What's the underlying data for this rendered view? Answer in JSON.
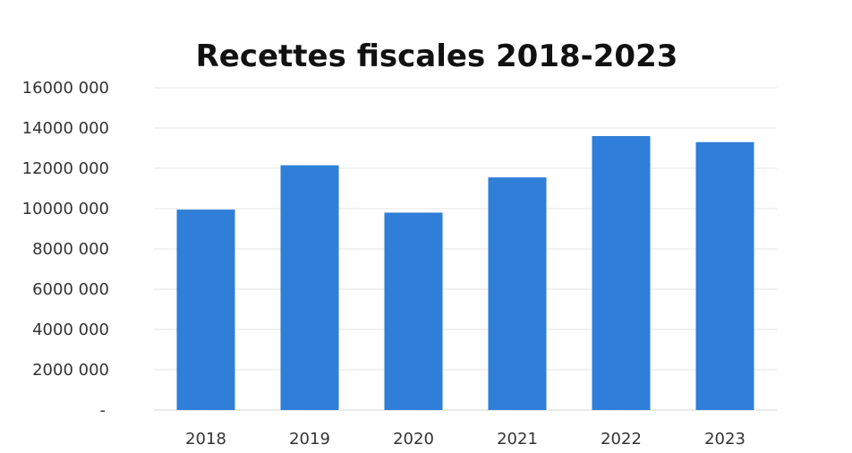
{
  "chart_data": {
    "type": "bar",
    "title": "Recettes  fiscales  2018-2023",
    "categories": [
      "2018",
      "2019",
      "2020",
      "2021",
      "2022",
      "2023"
    ],
    "values": [
      9950000,
      12150000,
      9800000,
      11550000,
      13600000,
      13300000
    ],
    "xlabel": "",
    "ylabel": "",
    "ylim": [
      0,
      16000000
    ],
    "yticks": [
      0,
      2000000,
      4000000,
      6000000,
      8000000,
      10000000,
      12000000,
      14000000,
      16000000
    ],
    "ytick_labels": [
      "-",
      "2000 000",
      "4000 000",
      "6000 000",
      "8000 000",
      "10000 000",
      "12000 000",
      "14000 000",
      "16000 000"
    ],
    "grid": true,
    "legend": "none",
    "bar_color": "#2F7ED8"
  }
}
